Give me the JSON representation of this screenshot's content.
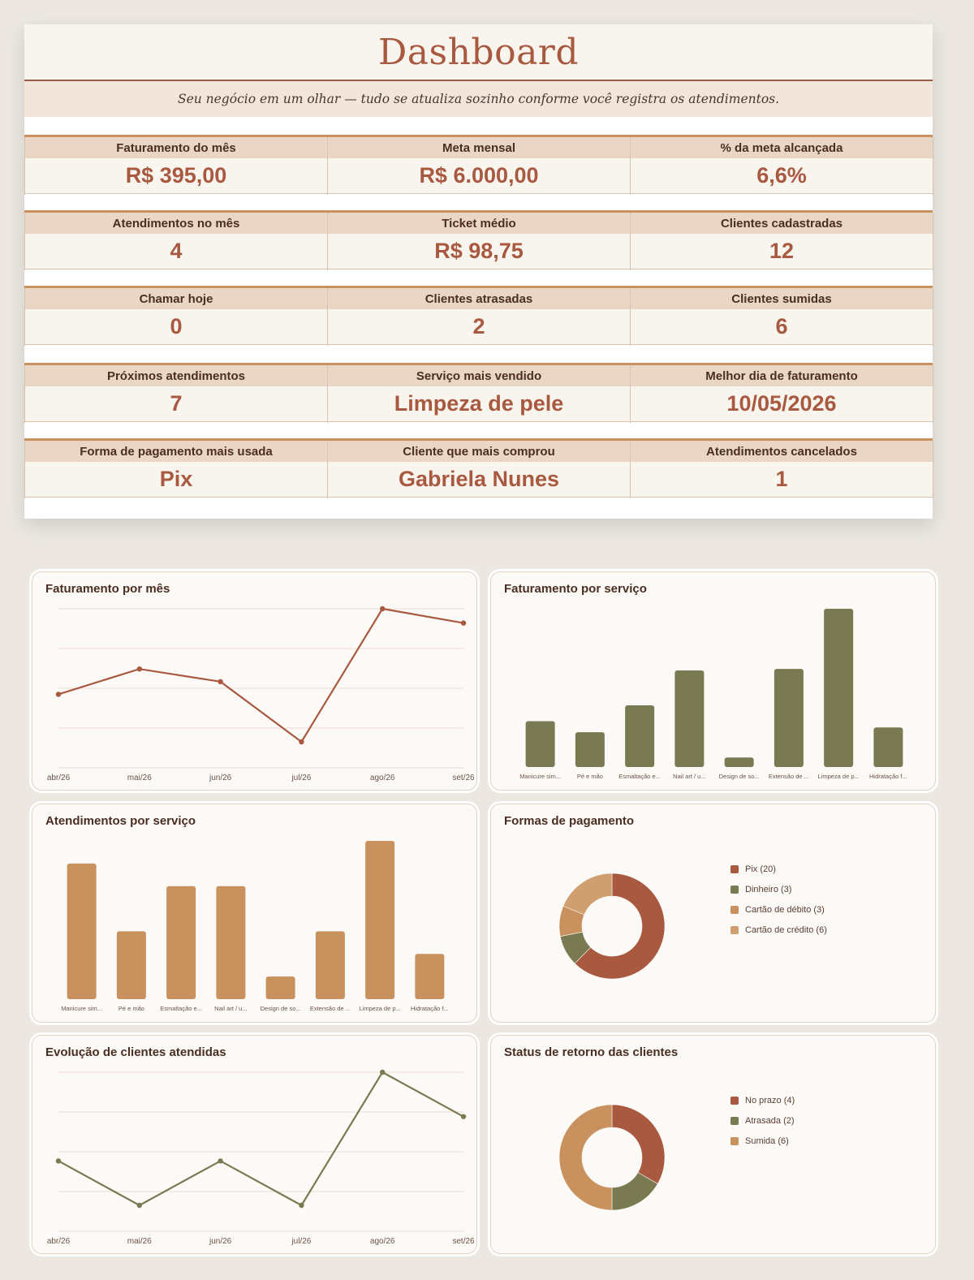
{
  "header": {
    "title": "Dashboard",
    "subtitle": "Seu negócio em um olhar — tudo se atualiza sozinho conforme você registra os atendimentos."
  },
  "kpis": [
    [
      {
        "label": "Faturamento do mês",
        "value": "R$ 395,00"
      },
      {
        "label": "Meta mensal",
        "value": "R$ 6.000,00"
      },
      {
        "label": "% da meta alcançada",
        "value": "6,6%"
      }
    ],
    [
      {
        "label": "Atendimentos no mês",
        "value": "4"
      },
      {
        "label": "Ticket médio",
        "value": "R$ 98,75"
      },
      {
        "label": "Clientes cadastradas",
        "value": "12"
      }
    ],
    [
      {
        "label": "Chamar hoje",
        "value": "0"
      },
      {
        "label": "Clientes atrasadas",
        "value": "2"
      },
      {
        "label": "Clientes sumidas",
        "value": "6"
      }
    ],
    [
      {
        "label": "Próximos atendimentos",
        "value": "7"
      },
      {
        "label": "Serviço mais vendido",
        "value": "Limpeza de pele"
      },
      {
        "label": "Melhor dia de faturamento",
        "value": "10/05/2026"
      }
    ],
    [
      {
        "label": "Forma de pagamento mais usada",
        "value": "Pix"
      },
      {
        "label": "Cliente que mais comprou",
        "value": "Gabriela Nunes"
      },
      {
        "label": "Atendimentos cancelados",
        "value": "1"
      }
    ]
  ],
  "colors": {
    "accent": "#a8593f",
    "olive": "#7a7a52",
    "caramel": "#c8915e",
    "tan": "#d09f70"
  },
  "chart_data": [
    {
      "type": "line",
      "title": "Faturamento por mês",
      "categories": [
        "abr/26",
        "mai/26",
        "jun/26",
        "jul/26",
        "ago/26",
        "set/26"
      ],
      "values": [
        0.46,
        0.62,
        0.54,
        0.16,
        1.0,
        0.91
      ],
      "color": "#a8593f",
      "grid": true
    },
    {
      "type": "bar",
      "title": "Faturamento por serviço",
      "categories": [
        "Manicure sim...",
        "Pé e mão",
        "Esmaltação e...",
        "Nail art / u...",
        "Design de so...",
        "Extensão de ...",
        "Limpeza de p...",
        "Hidratação f..."
      ],
      "values": [
        0.29,
        0.22,
        0.39,
        0.61,
        0.06,
        0.62,
        1.0,
        0.25
      ],
      "color": "#7a7a52"
    },
    {
      "type": "bar",
      "title": "Atendimentos por serviço",
      "categories": [
        "Manicure sim...",
        "Pé e mão",
        "Esmaltação e...",
        "Nail art / u...",
        "Design de so...",
        "Extensão de ...",
        "Limpeza de p...",
        "Hidratação f..."
      ],
      "values": [
        6,
        3,
        5,
        5,
        1,
        3,
        7,
        2
      ],
      "color": "#c8915e"
    },
    {
      "type": "pie",
      "title": "Formas de pagamento",
      "labels": [
        "Pix (20)",
        "Dinheiro (3)",
        "Cartão de débito (3)",
        "Cartão de crédito (6)"
      ],
      "values": [
        20,
        3,
        3,
        6
      ],
      "colors": [
        "#a8593f",
        "#7a7a52",
        "#c8915e",
        "#d09f70"
      ],
      "legend": "right"
    },
    {
      "type": "line",
      "title": "Evolução de clientes atendidas",
      "categories": [
        "abr/26",
        "mai/26",
        "jun/26",
        "jul/26",
        "ago/26",
        "set/26"
      ],
      "values": [
        4,
        2,
        4,
        2,
        8,
        6
      ],
      "color": "#7a7a52",
      "grid": true
    },
    {
      "type": "pie",
      "title": "Status de retorno das clientes",
      "labels": [
        "No prazo (4)",
        "Atrasada (2)",
        "Sumida (6)"
      ],
      "values": [
        4,
        2,
        6
      ],
      "colors": [
        "#a8593f",
        "#7a7a52",
        "#c8915e"
      ],
      "legend": "right"
    }
  ]
}
